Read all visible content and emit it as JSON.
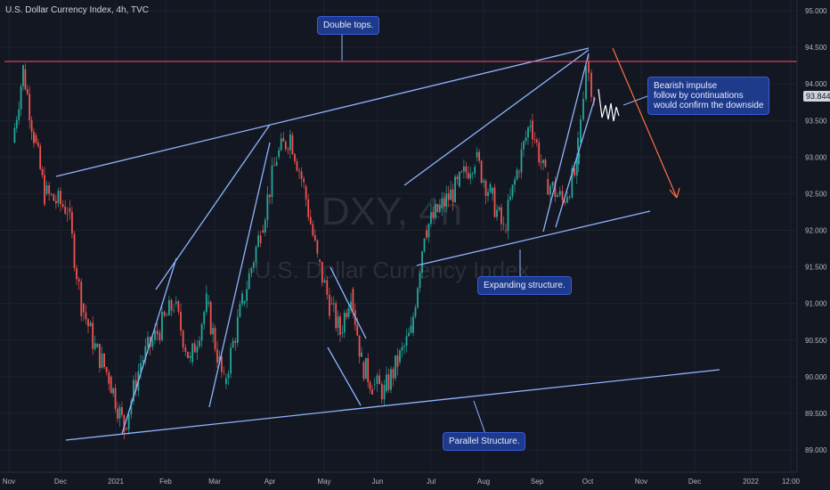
{
  "header": {
    "symbol_title": "U.S. Dollar Currency Index, 4h, TVC"
  },
  "watermark": {
    "ticker": "DXY",
    "tf": "4h",
    "name": "U.S. Dollar Currency Index"
  },
  "current_price": "93.844",
  "callouts": {
    "double_tops": "Double tops.",
    "bearish": "Bearish impulse\nfollow by continuations\nwould confirm the downside",
    "expanding": "Expanding structure.",
    "parallel": "Parallel Structure."
  },
  "colors": {
    "background": "#131722",
    "up": "#26a69a",
    "down": "#ef5350",
    "trendline": "#8fb4ff",
    "resistance": "#ff4d6d",
    "arrow": "#ff7043",
    "callout": "#1e3a8a"
  },
  "chart_data": {
    "type": "candlestick",
    "title": "U.S. Dollar Currency Index, 4h, TVC",
    "x_ticks": [
      "Nov",
      "Dec",
      "2021",
      "Feb",
      "Mar",
      "Apr",
      "May",
      "Jun",
      "Jul",
      "Aug",
      "Sep",
      "Oct",
      "Nov",
      "Dec",
      "2022",
      "12:00"
    ],
    "y_ticks": [
      "95.000",
      "94.500",
      "94.000",
      "93.500",
      "93.000",
      "92.500",
      "92.000",
      "91.500",
      "91.000",
      "90.500",
      "90.000",
      "89.500",
      "89.000"
    ],
    "ylim": [
      88.8,
      95.3
    ],
    "grid": true,
    "path_points": [
      [
        "Nov",
        93.2
      ],
      [
        "Nov",
        94.2
      ],
      [
        "Nov",
        93.3
      ],
      [
        "Nov",
        92.5
      ],
      [
        "Dec",
        92.3
      ],
      [
        "Dec",
        91.0
      ],
      [
        "Dec",
        90.4
      ],
      [
        "Dec",
        90.0
      ],
      [
        "2021",
        89.3
      ],
      [
        "2021",
        90.2
      ],
      [
        "2021",
        90.6
      ],
      [
        "Feb",
        91.0
      ],
      [
        "Feb",
        90.2
      ],
      [
        "Feb",
        91.0
      ],
      [
        "Mar",
        89.9
      ],
      [
        "Mar",
        91.0
      ],
      [
        "Mar",
        92.0
      ],
      [
        "Apr",
        93.0
      ],
      [
        "Apr",
        93.3
      ],
      [
        "Apr",
        92.6
      ],
      [
        "Apr",
        91.6
      ],
      [
        "May",
        91.0
      ],
      [
        "May",
        90.6
      ],
      [
        "May",
        91.2
      ],
      [
        "May",
        90.2
      ],
      [
        "May",
        89.9
      ],
      [
        "Jun",
        89.8
      ],
      [
        "Jun",
        90.2
      ],
      [
        "Jun",
        90.6
      ],
      [
        "Jun",
        92.0
      ],
      [
        "Jul",
        92.3
      ],
      [
        "Jul",
        92.6
      ],
      [
        "Jul",
        93.0
      ],
      [
        "Aug",
        92.5
      ],
      [
        "Aug",
        92.0
      ],
      [
        "Aug",
        92.8
      ],
      [
        "Aug",
        93.5
      ],
      [
        "Sep",
        92.7
      ],
      [
        "Sep",
        92.4
      ],
      [
        "Sep",
        92.9
      ],
      [
        "Oct",
        93.2
      ],
      [
        "Oct",
        94.3
      ],
      [
        "Oct",
        93.84
      ]
    ],
    "annotations": [
      {
        "type": "horizontal_line",
        "label": "resistance",
        "y": 94.3
      },
      {
        "type": "callout",
        "text": "Double tops."
      },
      {
        "type": "callout",
        "text": "Bearish impulse follow by continuations would confirm the downside"
      },
      {
        "type": "callout",
        "text": "Expanding structure."
      },
      {
        "type": "callout",
        "text": "Parallel Structure."
      }
    ]
  }
}
